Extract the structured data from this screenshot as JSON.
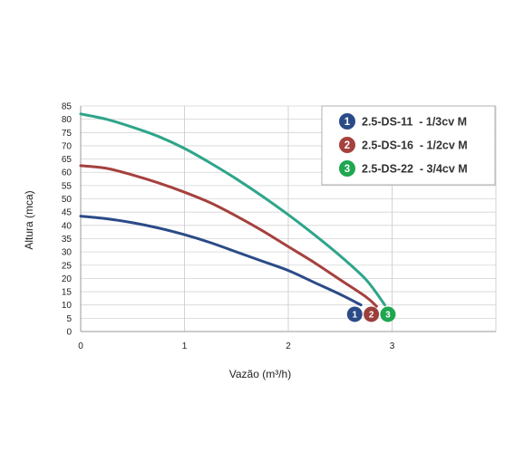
{
  "chart_data": {
    "type": "line",
    "xlabel": "Vazão (m³/h)",
    "ylabel": "Altura (mca)",
    "xlim": [
      0,
      4
    ],
    "ylim": [
      0,
      85
    ],
    "x_ticks": [
      "0",
      "1",
      "2",
      "3"
    ],
    "y_ticks": [
      "0",
      "5",
      "10",
      "15",
      "20",
      "25",
      "30",
      "35",
      "40",
      "45",
      "50",
      "55",
      "60",
      "65",
      "70",
      "75",
      "80",
      "85"
    ],
    "grid": true,
    "legend_position": "top-right",
    "series": [
      {
        "name": "2.5-DS-11  - 1/3cv M",
        "marker": "1",
        "color": "#2b4b88",
        "x": [
          0,
          0.25,
          0.5,
          0.75,
          1.0,
          1.25,
          1.5,
          1.75,
          2.0,
          2.25,
          2.5,
          2.7
        ],
        "y": [
          43.5,
          42.5,
          41,
          39,
          36.5,
          33.5,
          30,
          26.5,
          23,
          18.5,
          14,
          10
        ]
      },
      {
        "name": "2.5-DS-16  - 1/2cv M",
        "marker": "2",
        "color": "#a5413e",
        "x": [
          0,
          0.25,
          0.5,
          0.75,
          1.0,
          1.25,
          1.5,
          1.75,
          2.0,
          2.25,
          2.5,
          2.75,
          2.85
        ],
        "y": [
          62.5,
          61.5,
          59,
          56,
          52.5,
          48.5,
          43.5,
          38,
          32,
          26,
          19.5,
          13,
          9.5
        ]
      },
      {
        "name": "2.5-DS-22  - 3/4cv M",
        "marker": "3",
        "color": "#2ea58a",
        "x": [
          0,
          0.25,
          0.5,
          0.75,
          1.0,
          1.25,
          1.5,
          1.75,
          2.0,
          2.25,
          2.5,
          2.75,
          2.93
        ],
        "y": [
          82,
          80,
          77,
          73.5,
          69,
          63.5,
          57.5,
          51,
          44,
          36.5,
          28.5,
          19.5,
          10
        ]
      }
    ],
    "end_markers": [
      {
        "label": "1",
        "color": "#2b4b88",
        "x": 2.64,
        "y": 6.5
      },
      {
        "label": "2",
        "color": "#9c3e3c",
        "x": 2.8,
        "y": 6.5
      },
      {
        "label": "3",
        "color": "#1fa651",
        "x": 2.96,
        "y": 6.5
      }
    ],
    "legend_colors": [
      "#2b4b88",
      "#a5413e",
      "#1fa651"
    ]
  }
}
